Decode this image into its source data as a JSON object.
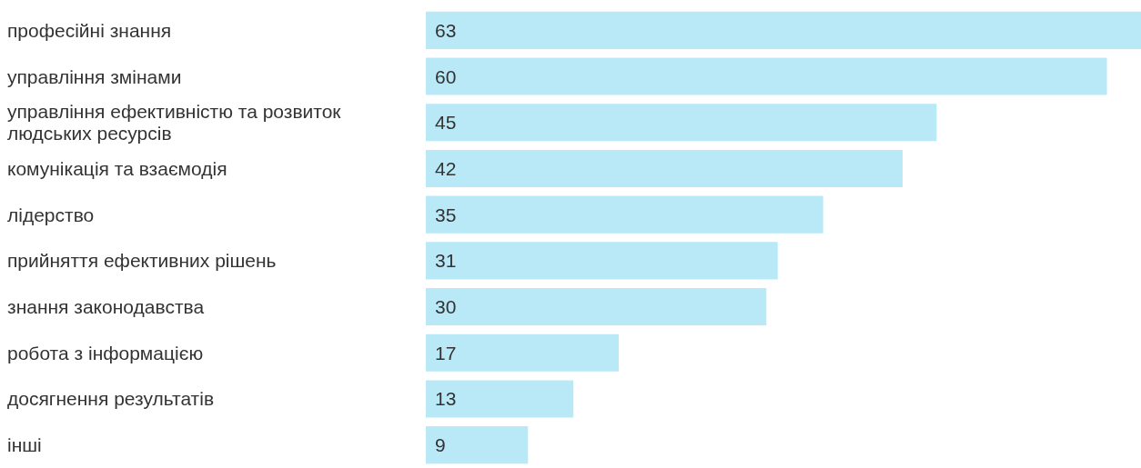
{
  "chart_data": {
    "type": "bar",
    "orientation": "horizontal",
    "categories": [
      "професійні знання",
      "управління змінами",
      "управління ефективністю та розвиток людських ресурсів",
      "комунікація та взаємодія",
      "лідерство",
      "прийняття ефективних рішень",
      "знання законодавства",
      "робота з інформацією",
      "досягнення результатів",
      "інші"
    ],
    "values": [
      63,
      60,
      45,
      42,
      35,
      31,
      30,
      17,
      13,
      9
    ],
    "color": "#b9e9f7",
    "data_labels": true
  }
}
